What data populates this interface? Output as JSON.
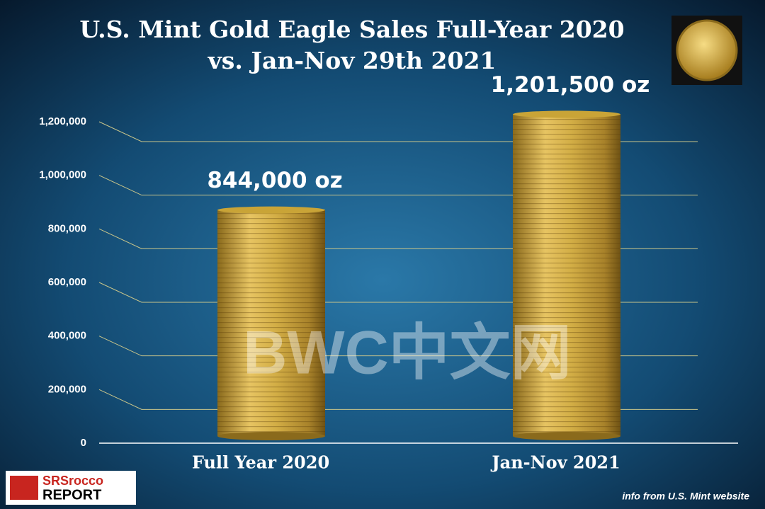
{
  "chart_data": {
    "type": "bar",
    "title": [
      "U.S. Mint Gold Eagle Sales Full-Year 2020",
      "vs. Jan-Nov 29th 2021"
    ],
    "categories": [
      "Full Year 2020",
      "Jan-Nov 2021"
    ],
    "values": [
      844000,
      1201500
    ],
    "value_labels": [
      "844,000 oz",
      "1,201,500 oz"
    ],
    "color": "#c9a437",
    "ylim": [
      0,
      1200000
    ],
    "yticks": [
      0,
      {
        "value": 200000,
        "label": "200,000"
      },
      {
        "value": 400000,
        "label": "400,000"
      },
      {
        "value": 600000,
        "label": "600,000"
      },
      {
        "value": 800000,
        "label": "800,000"
      },
      {
        "value": 1000000,
        "label": "1,000,000"
      },
      {
        "value": 1200000,
        "label": "1,200,000"
      }
    ],
    "grid": true,
    "watermark": "BWC中文网",
    "logo": [
      "SRSrocco",
      "REPORT"
    ],
    "source": "info from U.S. Mint website"
  }
}
